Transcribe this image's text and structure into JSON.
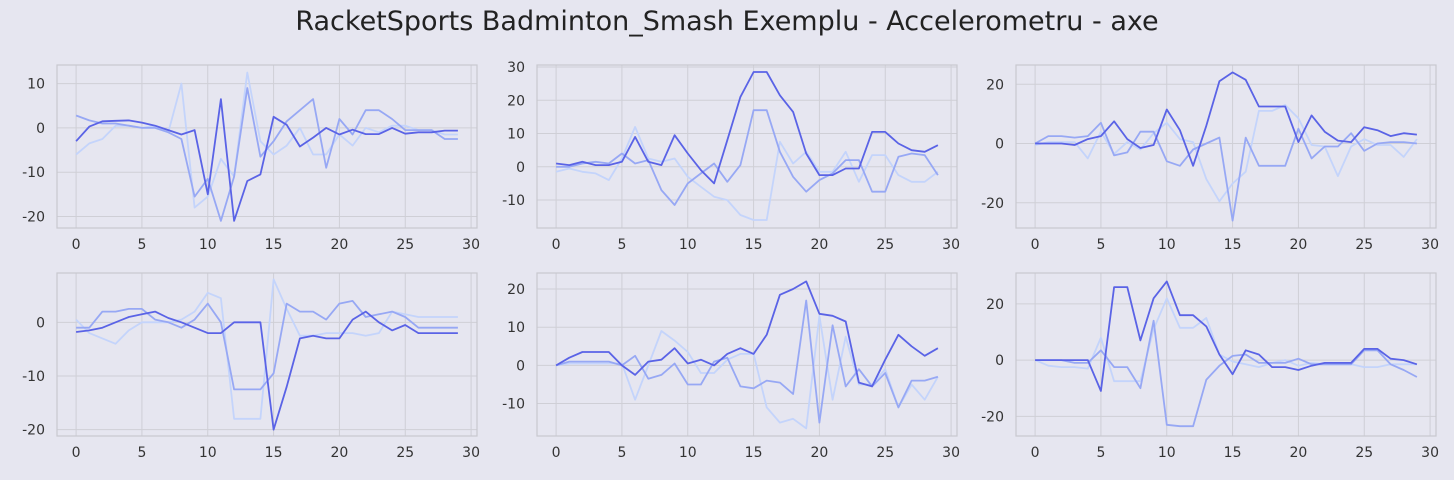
{
  "figure": {
    "title": "RacketSports Badminton_Smash Exemplu - Accelerometru - axe",
    "background": "#e6e6f0",
    "grid_color": "#cfcfd6",
    "line_colors": [
      "#5a63e6",
      "#97a8f4",
      "#c4d4fb"
    ]
  },
  "chart_data": [
    {
      "type": "line",
      "grid": true,
      "x": [
        0,
        1,
        2,
        3,
        4,
        5,
        6,
        7,
        8,
        9,
        10,
        11,
        12,
        13,
        14,
        15,
        16,
        17,
        18,
        19,
        20,
        21,
        22,
        23,
        24,
        25,
        26,
        27,
        28,
        29
      ],
      "xlim": [
        -1.45,
        30.45
      ],
      "ylim": [
        -22.6,
        14.2
      ],
      "xticks": [
        0,
        5,
        10,
        15,
        20,
        25,
        30
      ],
      "yticks": [
        10,
        0,
        -10,
        -20
      ],
      "series": [
        {
          "values": [
            -3,
            0.3,
            1.5,
            1.6,
            1.7,
            1.2,
            0.5,
            -0.5,
            -1.5,
            -0.5,
            -15,
            6.5,
            -21,
            -12,
            -10.5,
            2.5,
            0.7,
            -4.2,
            -2.2,
            0,
            -1.5,
            -0.4,
            -1.4,
            -1.4,
            0,
            -1.3,
            -1,
            -1,
            -0.6,
            -0.6
          ]
        },
        {
          "values": [
            2.8,
            1.7,
            1,
            1,
            0.5,
            0,
            0,
            -1,
            -2.5,
            -15.5,
            -11.5,
            -21,
            -11,
            9,
            -6.5,
            -3,
            1.5,
            4,
            6.5,
            -9,
            2,
            -1.5,
            4,
            4,
            2,
            -0.5,
            -0.5,
            -0.5,
            -2.5,
            -2.5
          ]
        },
        {
          "values": [
            -6,
            -3.5,
            -2.5,
            0.5,
            0.5,
            0,
            0.5,
            -1,
            10,
            -18,
            -15.5,
            -7,
            -11,
            12.5,
            -3,
            -6,
            -4,
            0,
            -6,
            -6,
            -1.5,
            -4,
            0,
            -1,
            0.5,
            0.5,
            -0.5,
            -0.5,
            -1.5,
            -1.5
          ]
        }
      ]
    },
    {
      "type": "line",
      "grid": true,
      "x": [
        0,
        1,
        2,
        3,
        4,
        5,
        6,
        7,
        8,
        9,
        10,
        11,
        12,
        13,
        14,
        15,
        16,
        17,
        18,
        19,
        20,
        21,
        22,
        23,
        24,
        25,
        26,
        27,
        28,
        29
      ],
      "xlim": [
        -1.45,
        30.45
      ],
      "ylim": [
        -18.4,
        30.6
      ],
      "xticks": [
        0,
        5,
        10,
        15,
        20,
        25,
        30
      ],
      "yticks": [
        30,
        20,
        10,
        0,
        -10
      ],
      "series": [
        {
          "values": [
            1,
            0.5,
            1.5,
            0.5,
            0.5,
            1.5,
            9,
            1.5,
            0.5,
            9.5,
            4,
            -1,
            -5,
            8,
            21,
            28.5,
            28.5,
            21.5,
            16.5,
            4,
            -2.5,
            -2.5,
            -0.5,
            -0.5,
            10.5,
            10.5,
            7,
            5,
            4.5,
            6.5
          ]
        },
        {
          "values": [
            0,
            0,
            1,
            1.5,
            1,
            4,
            1,
            2,
            -7,
            -11.5,
            -5,
            -2,
            1,
            -4.5,
            0.5,
            17,
            17,
            4.5,
            -3,
            -7.5,
            -4,
            -2,
            2,
            2,
            -7.5,
            -7.5,
            3,
            4,
            3.5,
            -2.5
          ]
        },
        {
          "values": [
            -1.5,
            -0.5,
            -1.5,
            -2,
            -4,
            2.5,
            12,
            2.5,
            1.5,
            2.5,
            -3,
            -6,
            -9,
            -10,
            -14.5,
            -16,
            -16,
            7.5,
            1,
            4.5,
            -1.5,
            -1.5,
            4.5,
            -4.5,
            3.5,
            3.5,
            -2.5,
            -4.5,
            -4.5,
            -1.5
          ]
        }
      ]
    },
    {
      "type": "line",
      "grid": true,
      "x": [
        0,
        1,
        2,
        3,
        4,
        5,
        6,
        7,
        8,
        9,
        10,
        11,
        12,
        13,
        14,
        15,
        16,
        17,
        18,
        19,
        20,
        21,
        22,
        23,
        24,
        25,
        26,
        27,
        28,
        29
      ],
      "xlim": [
        -1.45,
        30.45
      ],
      "ylim": [
        -28.5,
        26.5
      ],
      "xticks": [
        0,
        5,
        10,
        15,
        20,
        25,
        30
      ],
      "yticks": [
        20,
        0,
        -20
      ],
      "series": [
        {
          "values": [
            0,
            0,
            0,
            -0.5,
            1.5,
            2.5,
            7.5,
            1.5,
            -1.5,
            -0.5,
            11.5,
            4.5,
            -7.5,
            6,
            21,
            24,
            21.5,
            12.5,
            12.5,
            12.5,
            0.5,
            9.5,
            4,
            1,
            0.5,
            5.5,
            4.5,
            2.5,
            3.5,
            3
          ]
        },
        {
          "values": [
            0,
            2.5,
            2.5,
            2,
            2.5,
            7,
            -4,
            -3,
            4,
            4,
            -6,
            -7.5,
            -2,
            0,
            2,
            -26,
            2,
            -7.5,
            -7.5,
            -7.5,
            5,
            -5,
            -1,
            -1,
            3.5,
            -2.5,
            0,
            0.5,
            0.5,
            0
          ]
        },
        {
          "values": [
            -0.5,
            0.5,
            0.5,
            0.5,
            -5,
            4,
            -3.5,
            0.5,
            -2,
            3.5,
            7,
            1.5,
            0.5,
            -12,
            -19.5,
            -13.5,
            -9.5,
            11,
            11,
            13,
            8.5,
            -0.5,
            -1,
            -11,
            -1,
            1.5,
            -0.5,
            -0.5,
            -4.5,
            1.5
          ]
        }
      ]
    },
    {
      "type": "line",
      "grid": true,
      "x": [
        0,
        1,
        2,
        3,
        4,
        5,
        6,
        7,
        8,
        9,
        10,
        11,
        12,
        13,
        14,
        15,
        16,
        17,
        18,
        19,
        20,
        21,
        22,
        23,
        24,
        25,
        26,
        27,
        28,
        29
      ],
      "xlim": [
        -1.45,
        30.45
      ],
      "ylim": [
        -21.2,
        9.2
      ],
      "xticks": [
        0,
        5,
        10,
        15,
        20,
        25,
        30
      ],
      "yticks": [
        0,
        -10,
        -20
      ],
      "series": [
        {
          "values": [
            -1.8,
            -1.5,
            -1,
            0,
            1,
            1.5,
            2,
            0.8,
            0,
            -1,
            -2,
            -2,
            0,
            0,
            0,
            -20,
            -12,
            -3,
            -2.5,
            -3,
            -3,
            0.5,
            2,
            0,
            -1.5,
            -0.5,
            -2,
            -2,
            -2,
            -2
          ]
        },
        {
          "values": [
            -1,
            -1,
            2,
            2,
            2.5,
            2.5,
            0.5,
            0,
            -1,
            0.5,
            3.5,
            0,
            -12.5,
            -12.5,
            -12.5,
            -9.5,
            3.5,
            2,
            2,
            0.5,
            3.5,
            4,
            1,
            1.5,
            2,
            1,
            -1,
            -1,
            -1,
            -1
          ]
        },
        {
          "values": [
            0.5,
            -2,
            -3,
            -4,
            -1.5,
            0,
            0,
            0,
            0.5,
            2,
            5.5,
            4.5,
            -18,
            -18,
            -18,
            8,
            2.5,
            -2.5,
            -2.5,
            -2,
            -2,
            -2,
            -2.5,
            -2,
            2,
            1.5,
            1,
            1,
            1,
            1
          ]
        }
      ]
    },
    {
      "type": "line",
      "grid": true,
      "x": [
        0,
        1,
        2,
        3,
        4,
        5,
        6,
        7,
        8,
        9,
        10,
        11,
        12,
        13,
        14,
        15,
        16,
        17,
        18,
        19,
        20,
        21,
        22,
        23,
        24,
        25,
        26,
        27,
        28,
        29
      ],
      "xlim": [
        -1.45,
        30.45
      ],
      "ylim": [
        -18.5,
        24.2
      ],
      "xticks": [
        0,
        5,
        10,
        15,
        20,
        25,
        30
      ],
      "yticks": [
        20,
        10,
        0,
        -10
      ],
      "series": [
        {
          "values": [
            0,
            2,
            3.5,
            3.5,
            3.5,
            0,
            -2.5,
            1,
            1.5,
            4.5,
            0.5,
            1.5,
            0,
            3,
            4.5,
            3,
            8,
            18.5,
            20,
            22,
            13.5,
            13,
            11.5,
            -4.5,
            -5.5,
            1.5,
            8,
            5,
            2.5,
            4.5
          ]
        },
        {
          "values": [
            0,
            1,
            1,
            1,
            1,
            0,
            2.5,
            -3.5,
            -2.5,
            0.5,
            -5,
            -5,
            1,
            2,
            -5.5,
            -6,
            -4,
            -4.5,
            -7.5,
            17,
            -15,
            10.5,
            -5.5,
            -1,
            -5.5,
            -2,
            -11,
            -4,
            -4,
            -3
          ]
        },
        {
          "values": [
            0,
            0.5,
            0.5,
            0.5,
            0.5,
            0.5,
            -9,
            0,
            9,
            6.5,
            3.5,
            -2,
            -2,
            1.5,
            3,
            3,
            -11,
            -15,
            -14,
            -16.5,
            13,
            -9,
            7.5,
            -5,
            -5,
            -1,
            -11,
            -5,
            -9,
            -3
          ]
        }
      ]
    },
    {
      "type": "line",
      "grid": true,
      "x": [
        0,
        1,
        2,
        3,
        4,
        5,
        6,
        7,
        8,
        9,
        10,
        11,
        12,
        13,
        14,
        15,
        16,
        17,
        18,
        19,
        20,
        21,
        22,
        23,
        24,
        25,
        26,
        27,
        28,
        29
      ],
      "xlim": [
        -1.45,
        30.45
      ],
      "ylim": [
        -27,
        31
      ],
      "xticks": [
        0,
        5,
        10,
        15,
        20,
        25,
        30
      ],
      "yticks": [
        20,
        0,
        -20
      ],
      "series": [
        {
          "values": [
            0,
            0,
            0,
            0,
            0,
            -11,
            26,
            26,
            7,
            22,
            28,
            16,
            16,
            12,
            2,
            -5,
            3.5,
            2,
            -2.5,
            -2.5,
            -3.5,
            -2,
            -1,
            -1,
            -1,
            4,
            4,
            0.5,
            0,
            -1.5
          ]
        },
        {
          "values": [
            0,
            0,
            0,
            -1,
            -1,
            3.5,
            -2.5,
            -2.5,
            -10,
            14,
            -23,
            -23.5,
            -23.5,
            -7,
            -2,
            1.5,
            2,
            -1,
            -1,
            -1,
            0.5,
            -1.5,
            -1.5,
            -1.5,
            -1.5,
            3.5,
            3.5,
            -1.5,
            -3.5,
            -6
          ]
        },
        {
          "values": [
            0,
            -2,
            -2.5,
            -2.5,
            -3,
            8,
            -7.5,
            -7.5,
            -7.5,
            11,
            22,
            11.5,
            11.5,
            15,
            2,
            -0.5,
            -1.5,
            -2.5,
            -1,
            0,
            -2,
            -1,
            -1.5,
            -1.5,
            -1.5,
            -2.5,
            -2.5,
            -1.5,
            -1.5,
            -1.5
          ]
        }
      ]
    }
  ]
}
